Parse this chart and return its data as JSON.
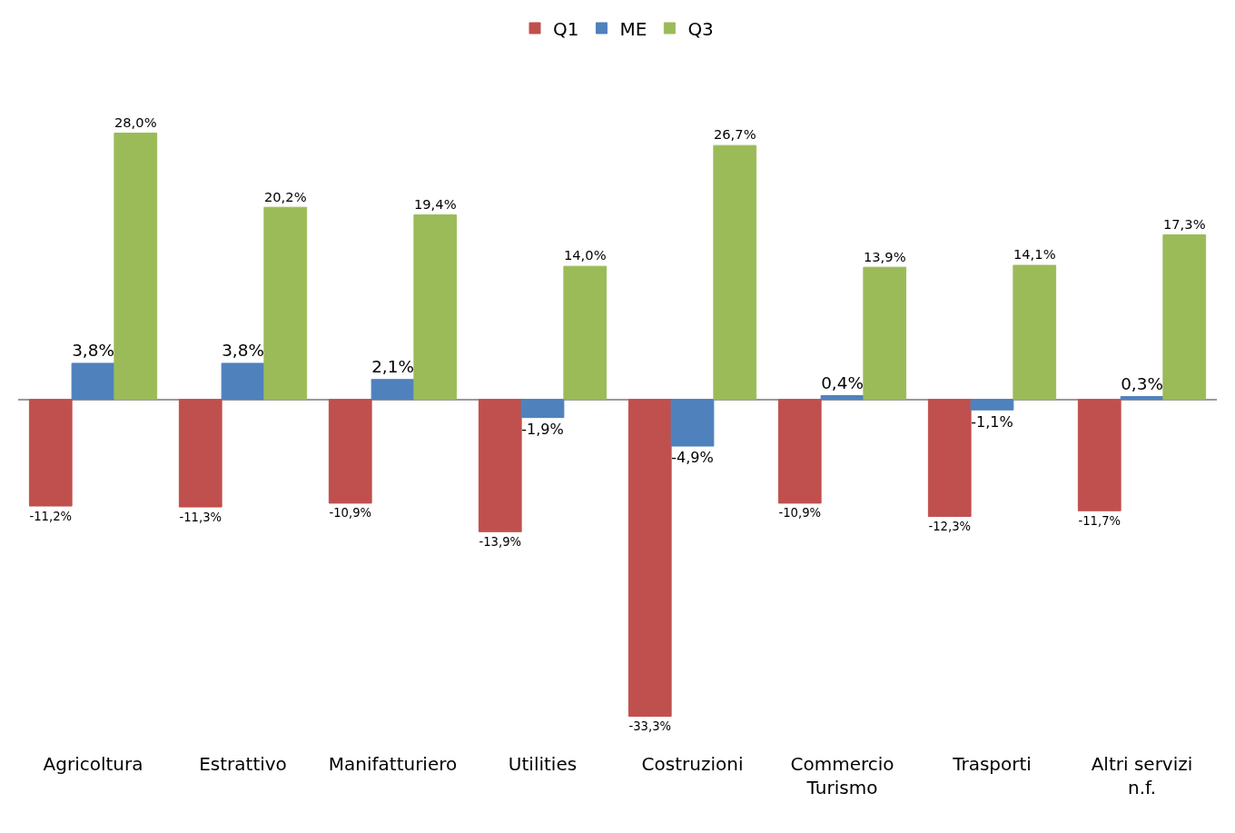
{
  "chart_data": {
    "type": "bar",
    "categories": [
      "Agricoltura",
      "Estrattivo",
      "Manifatturiero",
      "Utilities",
      "Costruzioni",
      "Commercio\nTurismo",
      "Trasporti",
      "Altri servizi\nn.f."
    ],
    "series": [
      {
        "name": "Q1",
        "color": "#c0504d",
        "values": [
          -11.2,
          -11.3,
          -10.9,
          -13.9,
          -33.3,
          -10.9,
          -12.3,
          -11.7
        ],
        "value_labels": [
          "-11,2%",
          "-11,3%",
          "-10,9%",
          "-13,9%",
          "-33,3%",
          "-10,9%",
          "-12,3%",
          "-11,7%"
        ]
      },
      {
        "name": "ME",
        "color": "#4f81bd",
        "values": [
          3.8,
          3.8,
          2.1,
          -1.9,
          -4.9,
          0.4,
          -1.1,
          0.3
        ],
        "value_labels": [
          "3,8%",
          "3,8%",
          "2,1%",
          "-1,9%",
          "-4,9%",
          "0,4%",
          "-1,1%",
          "0,3%"
        ]
      },
      {
        "name": "Q3",
        "color": "#9bbb59",
        "values": [
          28.0,
          20.2,
          19.4,
          14.0,
          26.7,
          13.9,
          14.1,
          17.3
        ],
        "value_labels": [
          "28,0%",
          "20,2%",
          "19,4%",
          "14,0%",
          "26,7%",
          "13,9%",
          "14,1%",
          "17,3%"
        ]
      }
    ],
    "legend": "top"
  }
}
